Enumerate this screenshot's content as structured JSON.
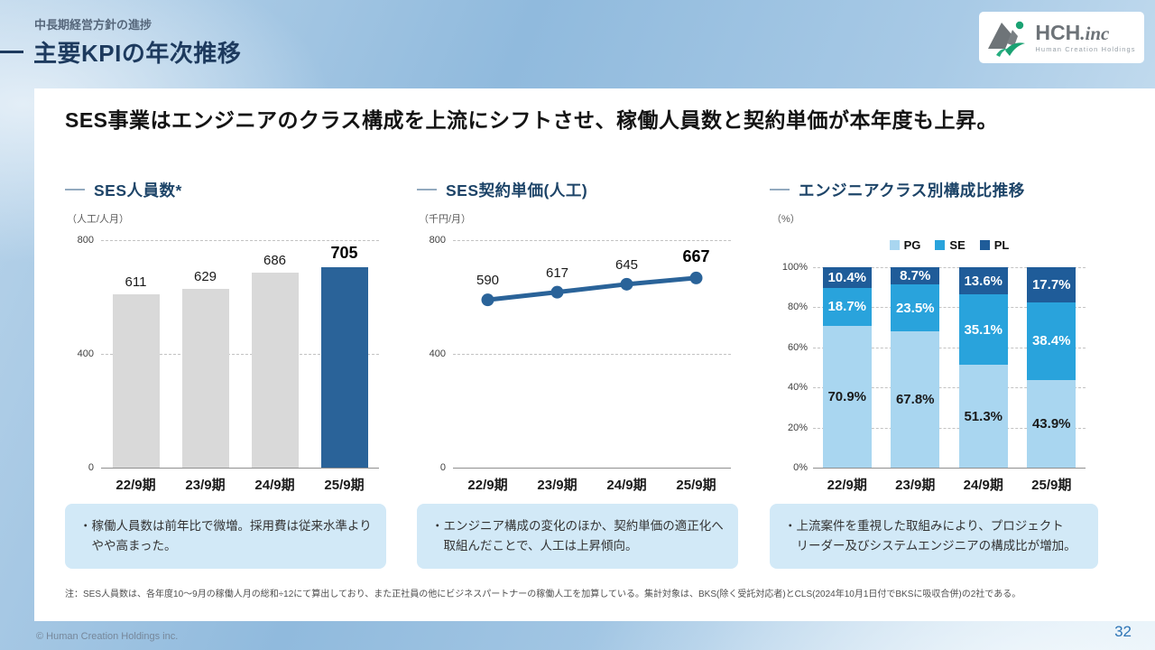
{
  "slide": {
    "eyebrow": "中長期経営方針の進捗",
    "title": "主要KPIの年次推移",
    "headline": "SES事業はエンジニアのクラス構成を上流にシフトさせ、稼働人員数と契約単価が本年度も上昇。",
    "footnote": "注：SES人員数は、各年度10～9月の稼働人月の総和÷12にて算出しており、また正社員の他にビジネスパートナーの稼働人工を加算している。集計対象は、BKS(除く受託対応者)とCLS(2024年10月1日付でBKSに吸収合併)の2社である。",
    "copyright": "© Human Creation Holdings inc.",
    "page_number": "32"
  },
  "logo": {
    "name": "HCH",
    "suffix": ".inc",
    "subtitle": "Human Creation Holdings"
  },
  "notes": [
    "・稼働人員数は前年比で微増。採用費は従来水準より\nやや高まった。",
    "・エンジニア構成の変化のほか、契約単価の適正化へ\n取組んだことで、人工は上昇傾向。",
    "・上流案件を重視した取組みにより、プロジェクト\nリーダー及びシステムエンジニアの構成比が増加。"
  ],
  "colors": {
    "accent_navy": "#2a6399",
    "bar_gray": "#d9d9d9",
    "pg_blue": "#a9d6f0",
    "se_blue": "#29a3dc",
    "pl_blue": "#1f5c99",
    "note_bg": "#d2e9f7"
  },
  "chart_data": [
    {
      "type": "bar",
      "title": "SES人員数*",
      "unit": "（人工/人月）",
      "categories": [
        "22/9期",
        "23/9期",
        "24/9期",
        "25/9期"
      ],
      "values": [
        611,
        629,
        686,
        705
      ],
      "ylim": [
        0,
        800
      ],
      "yticks": [
        0,
        400,
        800
      ],
      "bar_color": "#d9d9d9",
      "highlight_last": true,
      "highlight_color": "#2a6399",
      "grid": "dashed horizontal"
    },
    {
      "type": "line",
      "title": "SES契約単価(人工)",
      "unit": "（千円/月）",
      "categories": [
        "22/9期",
        "23/9期",
        "24/9期",
        "25/9期"
      ],
      "values": [
        590,
        617,
        645,
        667
      ],
      "ylim": [
        0,
        800
      ],
      "yticks": [
        0,
        400,
        800
      ],
      "line_color": "#2a6399",
      "highlight_last": true,
      "grid": "dashed horizontal"
    },
    {
      "type": "bar",
      "subtype": "stacked_percent",
      "title": "エンジニアクラス別構成比推移",
      "unit": "（%）",
      "categories": [
        "22/9期",
        "23/9期",
        "24/9期",
        "25/9期"
      ],
      "series": [
        {
          "name": "PG",
          "color": "#a9d6f0",
          "label_color": "#1a1a1a",
          "values": [
            70.9,
            67.8,
            51.3,
            43.9
          ]
        },
        {
          "name": "SE",
          "color": "#29a3dc",
          "label_color": "#ffffff",
          "values": [
            18.7,
            23.5,
            35.1,
            38.4
          ]
        },
        {
          "name": "PL",
          "color": "#1f5c99",
          "label_color": "#ffffff",
          "values": [
            10.4,
            8.7,
            13.6,
            17.7
          ]
        }
      ],
      "ylim": [
        0,
        100
      ],
      "yticks": [
        "0%",
        "20%",
        "40%",
        "60%",
        "80%",
        "100%"
      ],
      "legend_position": "top",
      "grid": "dashed horizontal"
    }
  ]
}
